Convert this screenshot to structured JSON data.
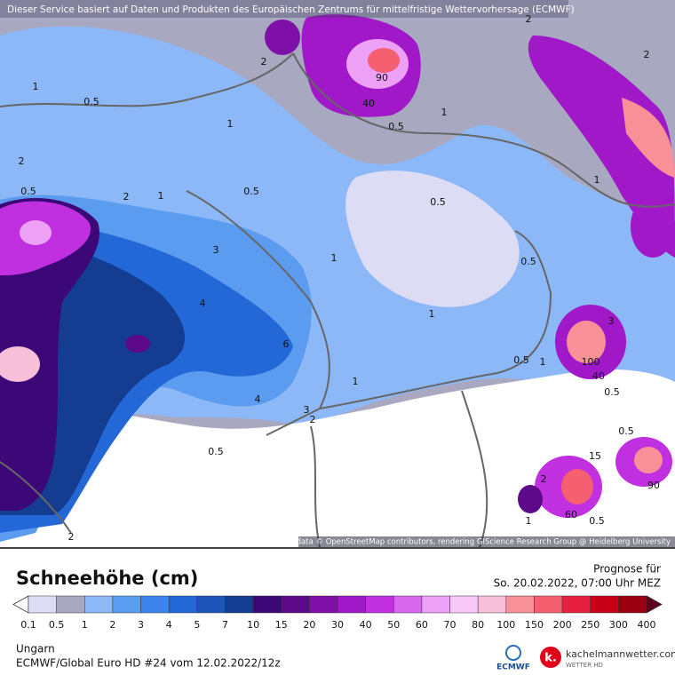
{
  "header": {
    "notice": "Dieser Service basiert auf Daten und Produkten des Europäischen Zentrums für mittelfristige Wettervorhersage (ECMWF)"
  },
  "map": {
    "attribution": "Map data © OpenStreetMap contributors, rendering GIScience Research Group @ Heidelberg University",
    "contour_labels": [
      "2",
      "2",
      "90",
      "40",
      "0.5",
      "1",
      "0.5",
      "1",
      "1",
      "2",
      "0.5",
      "2",
      "1",
      "0.5",
      "0.5",
      "1",
      "3",
      "1",
      "0.5",
      "4",
      "1",
      "3",
      "100",
      "40",
      "0.5",
      "0.5",
      "1",
      "6",
      "1",
      "4",
      "3",
      "2",
      "0.5",
      "2",
      "0.5",
      "15",
      "90",
      "60",
      "0.5",
      "1",
      "2",
      "2"
    ]
  },
  "legend": {
    "title": "Schneehöhe (cm)",
    "labels": [
      0.1,
      0.5,
      1,
      2,
      3,
      4,
      5,
      7,
      10,
      15,
      20,
      30,
      40,
      50,
      60,
      70,
      80,
      100,
      150,
      200,
      250,
      300,
      400
    ],
    "colors": [
      "#ffffff",
      "#dcdcf4",
      "#a8a8c0",
      "#8cb8f8",
      "#5c9cf0",
      "#3c84ec",
      "#2468d8",
      "#1c54b8",
      "#143c90",
      "#3c0878",
      "#5c0a8a",
      "#7e10a8",
      "#a018c8",
      "#c030e0",
      "#d868ee",
      "#eca0f6",
      "#f6c8f8",
      "#f8c0d8",
      "#f89098",
      "#f46070",
      "#e82040",
      "#c80018",
      "#980010",
      "#600018"
    ]
  },
  "forecast": {
    "label": "Prognose für",
    "time": "So. 20.02.2022, 07:00 Uhr MEZ"
  },
  "footer": {
    "region": "Ungarn",
    "model": "ECMWF/Global Euro HD #24 vom  12.02.2022/12z",
    "ecmwf_logo": "ECMWF",
    "brand_mark": "k.",
    "brand": "kachelmannwetter.com",
    "brand_sub": "WETTER HD"
  }
}
